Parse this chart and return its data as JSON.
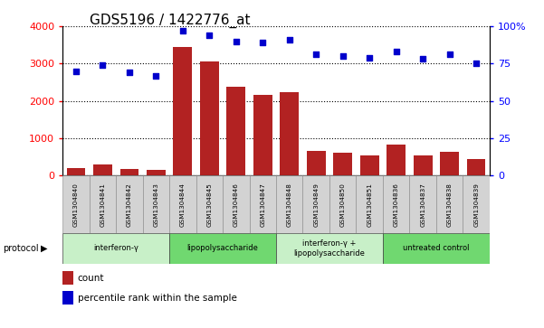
{
  "title": "GDS5196 / 1422776_at",
  "samples": [
    "GSM1304840",
    "GSM1304841",
    "GSM1304842",
    "GSM1304843",
    "GSM1304844",
    "GSM1304845",
    "GSM1304846",
    "GSM1304847",
    "GSM1304848",
    "GSM1304849",
    "GSM1304850",
    "GSM1304851",
    "GSM1304836",
    "GSM1304837",
    "GSM1304838",
    "GSM1304839"
  ],
  "counts": [
    200,
    290,
    175,
    155,
    3450,
    3050,
    2380,
    2170,
    2230,
    660,
    620,
    540,
    820,
    540,
    640,
    430
  ],
  "percentiles": [
    70,
    74,
    69,
    67,
    97,
    94,
    90,
    89,
    91,
    81,
    80,
    79,
    83,
    78,
    81,
    75
  ],
  "groups": [
    {
      "label": "interferon-γ",
      "start": 0,
      "end": 4,
      "color": "#c8f0c8"
    },
    {
      "label": "lipopolysaccharide",
      "start": 4,
      "end": 8,
      "color": "#70d870"
    },
    {
      "label": "interferon-γ +\nlipopolysaccharide",
      "start": 8,
      "end": 12,
      "color": "#c8f0c8"
    },
    {
      "label": "untreated control",
      "start": 12,
      "end": 16,
      "color": "#70d870"
    }
  ],
  "bar_color": "#b22222",
  "dot_color": "#0000cc",
  "left_ylim": [
    0,
    4000
  ],
  "right_ylim": [
    0,
    100
  ],
  "left_yticks": [
    0,
    1000,
    2000,
    3000,
    4000
  ],
  "right_yticks": [
    0,
    25,
    50,
    75,
    100
  ],
  "right_yticklabels": [
    "0",
    "25",
    "50",
    "75",
    "100%"
  ],
  "background_color": "#ffffff",
  "bar_color_dark": "#8b0000",
  "title_fontsize": 11,
  "protocol_label": "protocol",
  "legend_count_label": "count",
  "legend_percentile_label": "percentile rank within the sample"
}
